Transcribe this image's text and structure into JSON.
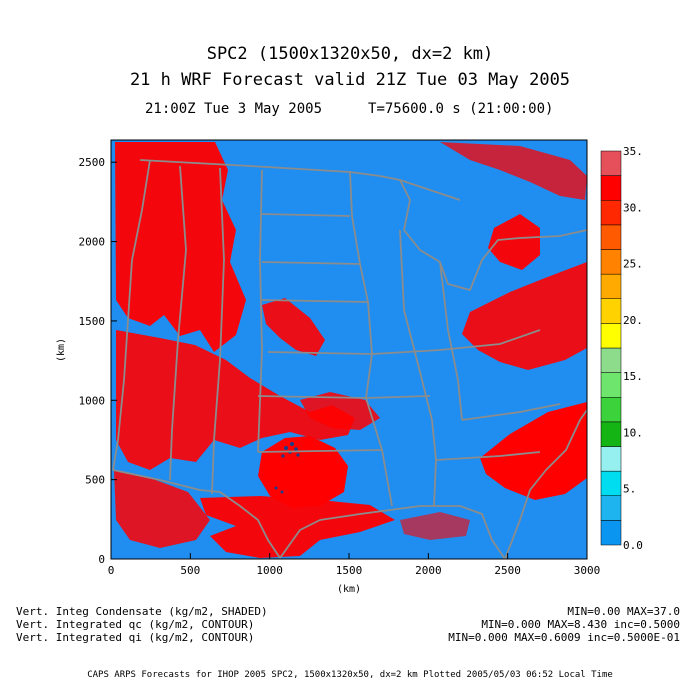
{
  "header": {
    "title_line1": "SPC2 (1500x1320x50, dx=2 km)",
    "title_line2": "21 h WRF Forecast valid 21Z Tue 03 May 2005",
    "time_label": "21:00Z Tue  3 May 2005",
    "sim_time_label": "T=75600.0 s (21:00:00)"
  },
  "map": {
    "background_color": "#1f8ef0",
    "precip_color": "#ff0000",
    "border_color": "#8c8c8c",
    "x_axis_label": "(km)",
    "y_axis_label": "(km)",
    "x_ticks": [
      "0",
      "500",
      "1000",
      "1500",
      "2000",
      "2500",
      "3000"
    ],
    "y_ticks": [
      "0",
      "500",
      "1000",
      "1500",
      "2000",
      "2500"
    ],
    "x_range_km": [
      0,
      3000
    ],
    "y_range_km": [
      0,
      2640
    ]
  },
  "colorbar": {
    "colors": [
      "#0a96f0",
      "#1eb4f0",
      "#00dcf0",
      "#96f0f0",
      "#14b414",
      "#3cd23c",
      "#6ee66e",
      "#8cdc8c",
      "#ffff00",
      "#ffd200",
      "#ffaa00",
      "#ff8200",
      "#ff5a00",
      "#ff2800",
      "#ff0000",
      "#e6505a"
    ],
    "labels": [
      "0.0",
      "5.",
      "10.",
      "15.",
      "20.",
      "25.",
      "30.",
      "35."
    ],
    "range": [
      0,
      35
    ]
  },
  "footer": {
    "line1_left": "Vert. Integ Condensate (kg/m2, SHADED)",
    "line1_right": "MIN=0.00 MAX=37.0",
    "line2_left": "Vert. Integrated qc (kg/m2, CONTOUR)",
    "line2_right": "MIN=0.000 MAX=8.430 inc=0.5000",
    "line3_left": "Vert. Integrated qi (kg/m2, CONTOUR)",
    "line3_right": "MIN=0.000 MAX=0.6009 inc=0.5000E-01",
    "credit": "CAPS ARPS Forecasts for IHOP 2005  SPC2, 1500x1320x50, dx=2 km  Plotted 2005/05/03 06:52 Local Time"
  }
}
